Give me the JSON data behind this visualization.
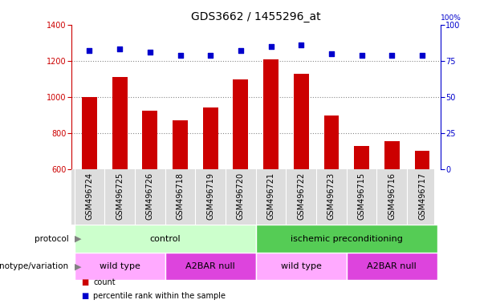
{
  "title": "GDS3662 / 1455296_at",
  "samples": [
    "GSM496724",
    "GSM496725",
    "GSM496726",
    "GSM496718",
    "GSM496719",
    "GSM496720",
    "GSM496721",
    "GSM496722",
    "GSM496723",
    "GSM496715",
    "GSM496716",
    "GSM496717"
  ],
  "counts": [
    998,
    1112,
    925,
    872,
    942,
    1098,
    1210,
    1130,
    898,
    730,
    755,
    705
  ],
  "percentile_ranks": [
    82,
    83,
    81,
    79,
    79,
    82,
    85,
    86,
    80,
    79,
    79,
    79
  ],
  "ylim_left": [
    600,
    1400
  ],
  "ylim_right": [
    0,
    100
  ],
  "yticks_left": [
    600,
    800,
    1000,
    1200,
    1400
  ],
  "yticks_right": [
    0,
    25,
    50,
    75,
    100
  ],
  "bar_color": "#cc0000",
  "dot_color": "#0000cc",
  "gridline_color": "#888888",
  "protocol_color_light": "#ccffcc",
  "protocol_color_dark": "#55cc55",
  "genotype_color_light": "#ffaaff",
  "genotype_color_dark": "#dd44dd",
  "xtick_bg_color": "#dddddd",
  "legend_items": [
    {
      "label": "count",
      "color": "#cc0000"
    },
    {
      "label": "percentile rank within the sample",
      "color": "#0000cc"
    }
  ],
  "title_fontsize": 10,
  "tick_fontsize": 7,
  "annotation_fontsize": 8,
  "label_fontsize": 7.5
}
